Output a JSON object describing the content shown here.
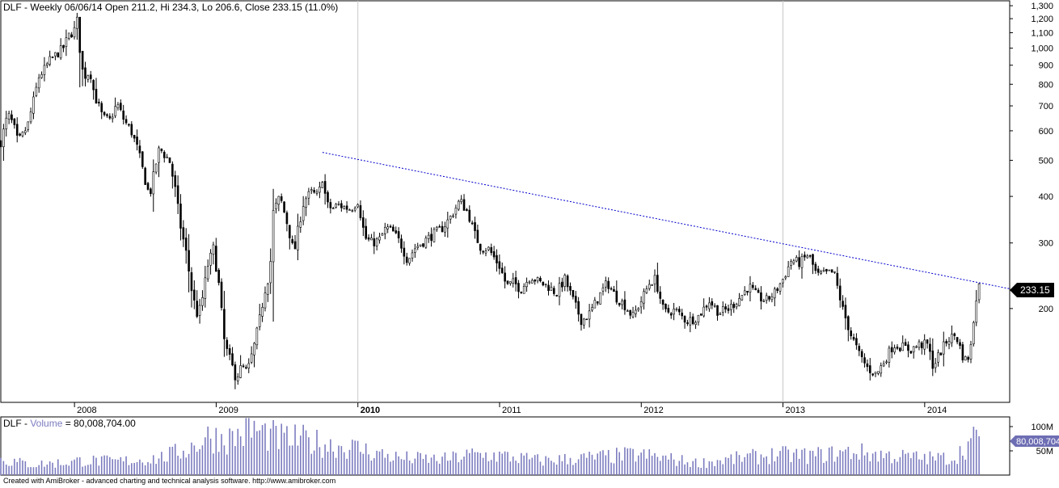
{
  "main_title": "DLF - Weekly 06/06/14 Open 211.2, Hi 234.3, Lo 206.6, Close 233.15 (11.0%)",
  "volume_title_prefix": "DLF - ",
  "volume_title_name": "Volume",
  "volume_title_value": " = 80,008,704.00",
  "footer": "Created with AmiBroker - advanced charting and technical analysis software. http://www.amibroker.com",
  "last_price_label": "233.15",
  "last_volume_label": "80,008,704",
  "colors": {
    "candle": "#000000",
    "trendline": "#0000cc",
    "volume_bar": "#7c7cc0",
    "grid": "#c8c8c8",
    "price_badge": "#000000",
    "volume_badge": "#6e6eb4"
  },
  "chart_data": [
    {
      "type": "candlestick",
      "title": "DLF - Weekly 06/06/14 Open 211.2, Hi 234.3, Lo 206.6, Close 233.15 (11.0%)",
      "y_scale": "log",
      "ylim": [
        112,
        1340
      ],
      "y_ticks": [
        200,
        300,
        400,
        500,
        600,
        700,
        800,
        900,
        1000,
        1100,
        1200,
        1300
      ],
      "y_tick_labels": [
        "200",
        "300",
        "400",
        "500",
        "600",
        "700",
        "800",
        "900",
        "1,000",
        "1,100",
        "1,200",
        "1,300"
      ],
      "x_tick_labels": [
        "2008",
        "2009",
        "2010",
        "2011",
        "2012",
        "2013",
        "2014"
      ],
      "x_ticks_year_fraction": [
        2008,
        2009,
        2010,
        2011,
        2012,
        2013,
        2014
      ],
      "xlim_year": [
        2007.48,
        2014.6
      ],
      "grid_years": [
        2010,
        2013
      ],
      "last_bar": {
        "date": "06/06/14",
        "open": 211.2,
        "high": 234.3,
        "low": 206.6,
        "close": 233.15
      },
      "trendline": {
        "points": [
          {
            "year": 2009.75,
            "value": 525
          },
          {
            "year": 2014.6,
            "value": 226
          }
        ],
        "style": "dotted"
      },
      "price_path": [
        [
          2007.48,
          560
        ],
        [
          2007.5,
          600
        ],
        [
          2007.53,
          665
        ],
        [
          2007.57,
          620
        ],
        [
          2007.6,
          560
        ],
        [
          2007.63,
          580
        ],
        [
          2007.67,
          620
        ],
        [
          2007.71,
          720
        ],
        [
          2007.75,
          840
        ],
        [
          2007.79,
          880
        ],
        [
          2007.83,
          930
        ],
        [
          2007.87,
          960
        ],
        [
          2007.92,
          1000
        ],
        [
          2007.96,
          1080
        ],
        [
          2008.0,
          1120
        ],
        [
          2008.02,
          1190
        ],
        [
          2008.05,
          880
        ],
        [
          2008.08,
          840
        ],
        [
          2008.11,
          870
        ],
        [
          2008.14,
          750
        ],
        [
          2008.17,
          700
        ],
        [
          2008.2,
          650
        ],
        [
          2008.25,
          640
        ],
        [
          2008.3,
          710
        ],
        [
          2008.35,
          640
        ],
        [
          2008.4,
          600
        ],
        [
          2008.45,
          530
        ],
        [
          2008.5,
          440
        ],
        [
          2008.53,
          400
        ],
        [
          2008.57,
          480
        ],
        [
          2008.6,
          540
        ],
        [
          2008.63,
          520
        ],
        [
          2008.67,
          500
        ],
        [
          2008.71,
          420
        ],
        [
          2008.75,
          330
        ],
        [
          2008.79,
          280
        ],
        [
          2008.83,
          220
        ],
        [
          2008.87,
          190
        ],
        [
          2008.9,
          210
        ],
        [
          2008.94,
          260
        ],
        [
          2008.98,
          290
        ],
        [
          2009.02,
          230
        ],
        [
          2009.06,
          160
        ],
        [
          2009.1,
          145
        ],
        [
          2009.14,
          130
        ],
        [
          2009.18,
          140
        ],
        [
          2009.22,
          135
        ],
        [
          2009.27,
          160
        ],
        [
          2009.31,
          190
        ],
        [
          2009.35,
          230
        ],
        [
          2009.38,
          250
        ],
        [
          2009.4,
          360
        ],
        [
          2009.45,
          400
        ],
        [
          2009.5,
          340
        ],
        [
          2009.55,
          280
        ],
        [
          2009.58,
          330
        ],
        [
          2009.62,
          390
        ],
        [
          2009.67,
          410
        ],
        [
          2009.72,
          400
        ],
        [
          2009.75,
          450
        ],
        [
          2009.78,
          380
        ],
        [
          2009.82,
          370
        ],
        [
          2009.86,
          380
        ],
        [
          2009.9,
          375
        ],
        [
          2009.95,
          370
        ],
        [
          2010.0,
          390
        ],
        [
          2010.05,
          310
        ],
        [
          2010.1,
          300
        ],
        [
          2010.15,
          305
        ],
        [
          2010.2,
          330
        ],
        [
          2010.25,
          320
        ],
        [
          2010.3,
          300
        ],
        [
          2010.35,
          270
        ],
        [
          2010.4,
          290
        ],
        [
          2010.45,
          300
        ],
        [
          2010.5,
          310
        ],
        [
          2010.55,
          320
        ],
        [
          2010.6,
          330
        ],
        [
          2010.65,
          350
        ],
        [
          2010.72,
          390
        ],
        [
          2010.78,
          360
        ],
        [
          2010.82,
          320
        ],
        [
          2010.87,
          290
        ],
        [
          2010.92,
          290
        ],
        [
          2011.0,
          260
        ],
        [
          2011.05,
          230
        ],
        [
          2011.1,
          235
        ],
        [
          2011.15,
          225
        ],
        [
          2011.22,
          245
        ],
        [
          2011.28,
          235
        ],
        [
          2011.34,
          230
        ],
        [
          2011.4,
          220
        ],
        [
          2011.46,
          240
        ],
        [
          2011.52,
          210
        ],
        [
          2011.58,
          185
        ],
        [
          2011.64,
          195
        ],
        [
          2011.7,
          215
        ],
        [
          2011.76,
          235
        ],
        [
          2011.82,
          215
        ],
        [
          2011.88,
          205
        ],
        [
          2011.94,
          190
        ],
        [
          2012.0,
          210
        ],
        [
          2012.06,
          235
        ],
        [
          2012.1,
          240
        ],
        [
          2012.16,
          195
        ],
        [
          2012.24,
          198
        ],
        [
          2012.32,
          185
        ],
        [
          2012.4,
          190
        ],
        [
          2012.48,
          210
        ],
        [
          2012.55,
          195
        ],
        [
          2012.62,
          200
        ],
        [
          2012.7,
          215
        ],
        [
          2012.76,
          230
        ],
        [
          2012.82,
          215
        ],
        [
          2012.88,
          210
        ],
        [
          2012.94,
          220
        ],
        [
          2013.0,
          240
        ],
        [
          2013.06,
          270
        ],
        [
          2013.12,
          265
        ],
        [
          2013.18,
          280
        ],
        [
          2013.24,
          245
        ],
        [
          2013.3,
          248
        ],
        [
          2013.36,
          250
        ],
        [
          2013.42,
          200
        ],
        [
          2013.48,
          170
        ],
        [
          2013.54,
          150
        ],
        [
          2013.6,
          138
        ],
        [
          2013.66,
          133
        ],
        [
          2013.72,
          146
        ],
        [
          2013.78,
          160
        ],
        [
          2013.84,
          158
        ],
        [
          2013.9,
          155
        ],
        [
          2013.96,
          160
        ],
        [
          2014.02,
          160
        ],
        [
          2014.06,
          140
        ],
        [
          2014.1,
          150
        ],
        [
          2014.16,
          165
        ],
        [
          2014.22,
          170
        ],
        [
          2014.28,
          145
        ],
        [
          2014.32,
          150
        ],
        [
          2014.36,
          211
        ],
        [
          2014.38,
          233
        ]
      ]
    },
    {
      "type": "bar",
      "title": "DLF - Volume = 80,008,704.00",
      "series_name": "Volume",
      "ylim": [
        0,
        120000000
      ],
      "y_ticks": [
        50000000,
        100000000
      ],
      "y_tick_labels": [
        "50M",
        "100M"
      ],
      "last_value": 80008704,
      "volume_path": [
        [
          2007.48,
          32000000
        ],
        [
          2007.7,
          22000000
        ],
        [
          2007.95,
          26000000
        ],
        [
          2008.05,
          30000000
        ],
        [
          2008.3,
          28000000
        ],
        [
          2008.6,
          35000000
        ],
        [
          2008.8,
          55000000
        ],
        [
          2008.95,
          80000000
        ],
        [
          2009.1,
          75000000
        ],
        [
          2009.25,
          95000000
        ],
        [
          2009.45,
          75000000
        ],
        [
          2009.62,
          72000000
        ],
        [
          2009.8,
          62000000
        ],
        [
          2010.0,
          55000000
        ],
        [
          2010.3,
          35000000
        ],
        [
          2010.6,
          32000000
        ],
        [
          2010.8,
          42000000
        ],
        [
          2011.0,
          40000000
        ],
        [
          2011.3,
          30000000
        ],
        [
          2011.6,
          35000000
        ],
        [
          2011.95,
          42000000
        ],
        [
          2012.1,
          38000000
        ],
        [
          2012.4,
          25000000
        ],
        [
          2012.7,
          35000000
        ],
        [
          2012.95,
          42000000
        ],
        [
          2013.2,
          40000000
        ],
        [
          2013.5,
          48000000
        ],
        [
          2013.75,
          40000000
        ],
        [
          2014.0,
          35000000
        ],
        [
          2014.2,
          35000000
        ],
        [
          2014.3,
          62000000
        ],
        [
          2014.38,
          80008704
        ]
      ]
    }
  ]
}
